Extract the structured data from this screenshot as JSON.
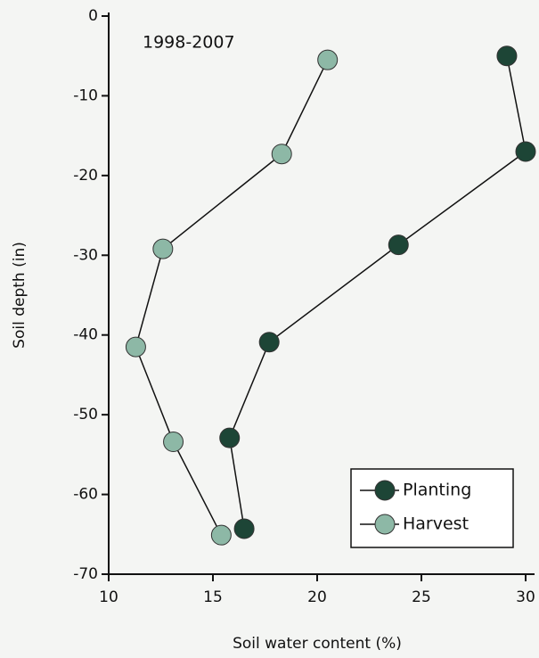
{
  "chart_data": {
    "type": "line",
    "annotation": "1998-2007",
    "x_label": "Soil water content (%)",
    "y_label": "Soil depth (in)",
    "xlim": [
      10,
      30
    ],
    "xticks": [
      10,
      15,
      20,
      25,
      30
    ],
    "ylim": [
      -70,
      0
    ],
    "yticks": [
      0,
      -10,
      -20,
      -30,
      -40,
      -50,
      -60,
      -70
    ],
    "legend": "lower right",
    "series": [
      {
        "name": "Planting",
        "color": "#1d4536",
        "x": [
          29.1,
          30.0,
          23.9,
          17.7,
          15.8,
          16.5
        ],
        "values": [
          -5.0,
          -17.0,
          -28.7,
          -40.9,
          -52.9,
          -64.3
        ]
      },
      {
        "name": "Harvest",
        "color": "#8db8a6",
        "x": [
          20.5,
          18.3,
          12.6,
          11.3,
          13.1,
          15.4
        ],
        "values": [
          -5.5,
          -17.3,
          -29.2,
          -41.5,
          -53.4,
          -65.1
        ]
      }
    ]
  }
}
